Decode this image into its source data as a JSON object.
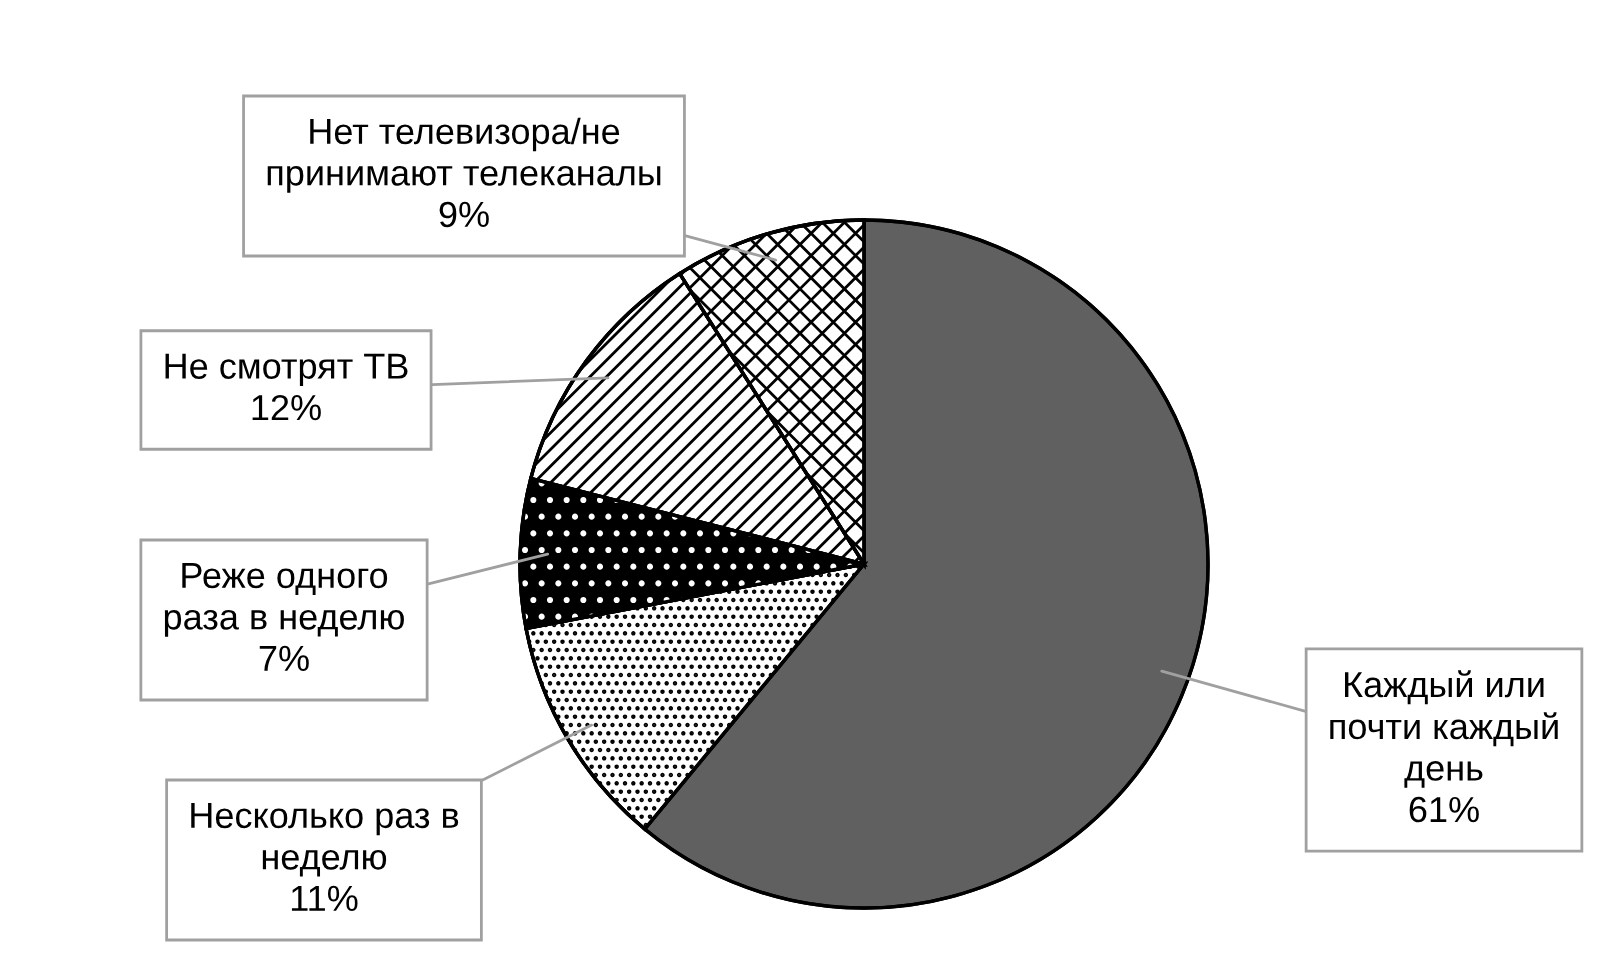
{
  "chart_data": {
    "type": "pie",
    "categories": [
      "Каждый или почти каждый день",
      "Несколько раз в неделю",
      "Реже одного раза в неделю",
      "Не смотрят ТВ",
      "Нет телевизора/не принимают телеканалы"
    ],
    "values": [
      61,
      11,
      7,
      12,
      9
    ],
    "colors": [
      "#606060",
      "#ffffff",
      "#000000",
      "#ffffff",
      "#ffffff"
    ],
    "value_labels": [
      "61%",
      "11%",
      "7%",
      "12%",
      "9%"
    ],
    "legend": false
  }
}
